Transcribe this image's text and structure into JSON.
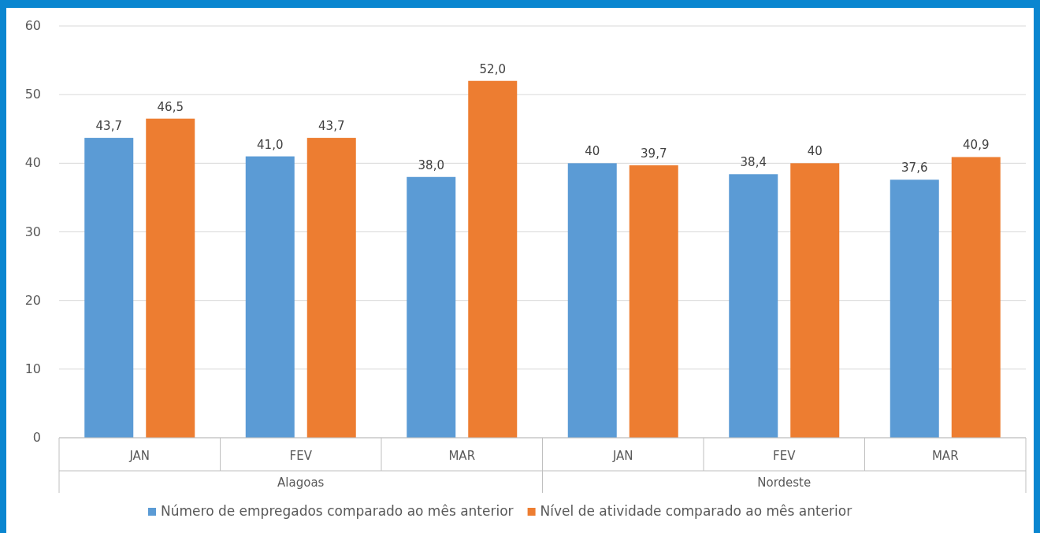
{
  "chart_data": {
    "type": "bar",
    "categories": [
      "JAN",
      "FEV",
      "MAR",
      "JAN",
      "FEV",
      "MAR"
    ],
    "series": [
      {
        "name": "Número de empregados comparado ao mês anterior",
        "color": "#5b9bd5",
        "values": [
          43.7,
          41.0,
          38.0,
          40,
          38.4,
          37.6
        ],
        "value_labels": [
          "43,7",
          "41,0",
          "38,0",
          "40",
          "38,4",
          "37,6"
        ]
      },
      {
        "name": "Nível de atividade comparado ao mês anterior",
        "color": "#ed7d31",
        "values": [
          46.5,
          43.7,
          52.0,
          39.7,
          40,
          40.9
        ],
        "value_labels": [
          "46,5",
          "43,7",
          "52,0",
          "39,7",
          "40",
          "40,9"
        ]
      }
    ],
    "annotations": [
      "Alagoas",
      "Nordeste"
    ],
    "ylim": [
      0,
      60
    ],
    "yticks": [
      0,
      10,
      20,
      30,
      40,
      50,
      60
    ],
    "grid": "y",
    "legend": "bottom"
  }
}
